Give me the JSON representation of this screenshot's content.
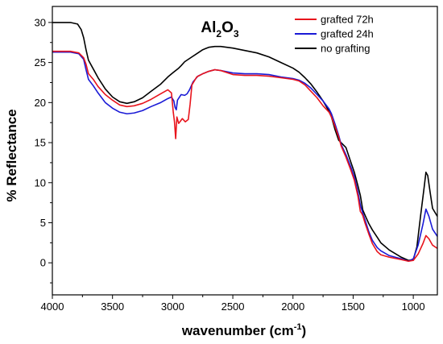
{
  "chart_data": {
    "type": "line",
    "title": {
      "base1": "Al",
      "sub1": "2",
      "base2": "O",
      "sub2": "3"
    },
    "xlabel": {
      "main": "wavenumber (cm",
      "sup": "-1",
      "end": ")"
    },
    "ylabel": "% Reflectance",
    "xlim": [
      4000,
      800
    ],
    "ylim": [
      -4,
      32
    ],
    "x_reversed": true,
    "grid": false,
    "legend_position": "top-right",
    "xticks": [
      4000,
      3500,
      3000,
      2500,
      2000,
      1500,
      1000
    ],
    "yticks": [
      0,
      5,
      10,
      15,
      20,
      25,
      30
    ],
    "series": [
      {
        "name": "grafted 72h",
        "color": "#e8141c",
        "points": [
          [
            4000,
            26.4
          ],
          [
            3850,
            26.4
          ],
          [
            3780,
            26.2
          ],
          [
            3740,
            25.6
          ],
          [
            3720,
            24.8
          ],
          [
            3700,
            23.6
          ],
          [
            3660,
            22.9
          ],
          [
            3620,
            22.0
          ],
          [
            3560,
            21.0
          ],
          [
            3500,
            20.3
          ],
          [
            3440,
            19.7
          ],
          [
            3380,
            19.5
          ],
          [
            3320,
            19.6
          ],
          [
            3250,
            19.9
          ],
          [
            3180,
            20.4
          ],
          [
            3100,
            21.1
          ],
          [
            3040,
            21.6
          ],
          [
            3010,
            21.2
          ],
          [
            2995,
            18.8
          ],
          [
            2985,
            17.6
          ],
          [
            2975,
            15.5
          ],
          [
            2965,
            18.2
          ],
          [
            2950,
            17.4
          ],
          [
            2935,
            17.7
          ],
          [
            2920,
            18.0
          ],
          [
            2895,
            17.6
          ],
          [
            2870,
            17.9
          ],
          [
            2855,
            19.8
          ],
          [
            2840,
            22.2
          ],
          [
            2800,
            23.2
          ],
          [
            2750,
            23.6
          ],
          [
            2700,
            23.9
          ],
          [
            2650,
            24.1
          ],
          [
            2600,
            24.0
          ],
          [
            2500,
            23.5
          ],
          [
            2400,
            23.4
          ],
          [
            2300,
            23.4
          ],
          [
            2200,
            23.3
          ],
          [
            2100,
            23.1
          ],
          [
            2000,
            22.9
          ],
          [
            1950,
            22.7
          ],
          [
            1900,
            22.2
          ],
          [
            1850,
            21.4
          ],
          [
            1800,
            20.6
          ],
          [
            1750,
            19.6
          ],
          [
            1700,
            18.8
          ],
          [
            1680,
            18.2
          ],
          [
            1650,
            17.0
          ],
          [
            1620,
            15.7
          ],
          [
            1600,
            14.6
          ],
          [
            1560,
            13.2
          ],
          [
            1520,
            11.6
          ],
          [
            1490,
            10.3
          ],
          [
            1460,
            8.3
          ],
          [
            1440,
            6.4
          ],
          [
            1430,
            6.2
          ],
          [
            1420,
            5.9
          ],
          [
            1400,
            4.9
          ],
          [
            1370,
            3.6
          ],
          [
            1340,
            2.4
          ],
          [
            1300,
            1.4
          ],
          [
            1270,
            1.0
          ],
          [
            1200,
            0.7
          ],
          [
            1100,
            0.4
          ],
          [
            1040,
            0.2
          ],
          [
            1000,
            0.3
          ],
          [
            960,
            1.1
          ],
          [
            920,
            2.4
          ],
          [
            895,
            3.4
          ],
          [
            870,
            3.0
          ],
          [
            840,
            2.2
          ],
          [
            800,
            1.8
          ]
        ]
      },
      {
        "name": "grafted 24h",
        "color": "#1a1ad6",
        "points": [
          [
            4000,
            26.3
          ],
          [
            3850,
            26.3
          ],
          [
            3780,
            26.1
          ],
          [
            3740,
            25.4
          ],
          [
            3720,
            24.1
          ],
          [
            3700,
            22.9
          ],
          [
            3660,
            22.1
          ],
          [
            3620,
            21.2
          ],
          [
            3560,
            20.0
          ],
          [
            3500,
            19.3
          ],
          [
            3440,
            18.8
          ],
          [
            3380,
            18.6
          ],
          [
            3320,
            18.7
          ],
          [
            3250,
            19.0
          ],
          [
            3180,
            19.5
          ],
          [
            3100,
            20.0
          ],
          [
            3040,
            20.5
          ],
          [
            3010,
            20.7
          ],
          [
            2990,
            20.2
          ],
          [
            2980,
            19.4
          ],
          [
            2970,
            19.1
          ],
          [
            2960,
            20.3
          ],
          [
            2930,
            21.0
          ],
          [
            2900,
            20.9
          ],
          [
            2880,
            21.1
          ],
          [
            2860,
            21.6
          ],
          [
            2830,
            22.6
          ],
          [
            2790,
            23.3
          ],
          [
            2750,
            23.6
          ],
          [
            2700,
            23.9
          ],
          [
            2650,
            24.1
          ],
          [
            2600,
            24.0
          ],
          [
            2500,
            23.7
          ],
          [
            2400,
            23.6
          ],
          [
            2300,
            23.6
          ],
          [
            2200,
            23.5
          ],
          [
            2100,
            23.2
          ],
          [
            2000,
            23.0
          ],
          [
            1950,
            22.8
          ],
          [
            1900,
            22.4
          ],
          [
            1850,
            21.8
          ],
          [
            1800,
            21.0
          ],
          [
            1750,
            20.2
          ],
          [
            1700,
            19.2
          ],
          [
            1680,
            18.6
          ],
          [
            1650,
            17.3
          ],
          [
            1620,
            15.9
          ],
          [
            1600,
            14.8
          ],
          [
            1560,
            13.5
          ],
          [
            1520,
            12.0
          ],
          [
            1490,
            10.7
          ],
          [
            1460,
            8.8
          ],
          [
            1440,
            7.2
          ],
          [
            1420,
            6.2
          ],
          [
            1400,
            5.3
          ],
          [
            1370,
            3.9
          ],
          [
            1340,
            2.8
          ],
          [
            1300,
            1.9
          ],
          [
            1270,
            1.5
          ],
          [
            1200,
            0.9
          ],
          [
            1100,
            0.5
          ],
          [
            1040,
            0.2
          ],
          [
            1000,
            0.5
          ],
          [
            960,
            2.2
          ],
          [
            920,
            4.8
          ],
          [
            895,
            6.7
          ],
          [
            870,
            5.8
          ],
          [
            840,
            4.2
          ],
          [
            800,
            3.3
          ]
        ]
      },
      {
        "name": "no grafting",
        "color": "#000000",
        "points": [
          [
            4000,
            30.0
          ],
          [
            3850,
            30.0
          ],
          [
            3790,
            29.8
          ],
          [
            3760,
            29.1
          ],
          [
            3740,
            28.1
          ],
          [
            3720,
            26.6
          ],
          [
            3700,
            25.3
          ],
          [
            3660,
            24.2
          ],
          [
            3620,
            23.1
          ],
          [
            3560,
            21.7
          ],
          [
            3500,
            20.7
          ],
          [
            3440,
            20.1
          ],
          [
            3380,
            19.9
          ],
          [
            3320,
            20.1
          ],
          [
            3250,
            20.6
          ],
          [
            3180,
            21.4
          ],
          [
            3100,
            22.3
          ],
          [
            3040,
            23.2
          ],
          [
            3000,
            23.7
          ],
          [
            2950,
            24.3
          ],
          [
            2930,
            24.6
          ],
          [
            2900,
            25.1
          ],
          [
            2850,
            25.6
          ],
          [
            2800,
            26.1
          ],
          [
            2750,
            26.6
          ],
          [
            2700,
            26.9
          ],
          [
            2650,
            27.0
          ],
          [
            2600,
            27.0
          ],
          [
            2500,
            26.8
          ],
          [
            2400,
            26.5
          ],
          [
            2300,
            26.2
          ],
          [
            2200,
            25.7
          ],
          [
            2100,
            25.0
          ],
          [
            2000,
            24.3
          ],
          [
            1950,
            23.8
          ],
          [
            1900,
            23.1
          ],
          [
            1850,
            22.3
          ],
          [
            1800,
            21.3
          ],
          [
            1750,
            20.2
          ],
          [
            1700,
            18.9
          ],
          [
            1680,
            18.2
          ],
          [
            1650,
            16.6
          ],
          [
            1620,
            15.3
          ],
          [
            1600,
            15.0
          ],
          [
            1560,
            14.4
          ],
          [
            1520,
            12.6
          ],
          [
            1490,
            11.3
          ],
          [
            1460,
            9.6
          ],
          [
            1440,
            8.4
          ],
          [
            1420,
            6.6
          ],
          [
            1400,
            5.9
          ],
          [
            1370,
            4.9
          ],
          [
            1340,
            4.1
          ],
          [
            1300,
            3.2
          ],
          [
            1270,
            2.5
          ],
          [
            1200,
            1.6
          ],
          [
            1100,
            0.7
          ],
          [
            1040,
            0.3
          ],
          [
            1000,
            0.4
          ],
          [
            970,
            2.0
          ],
          [
            940,
            5.8
          ],
          [
            910,
            9.4
          ],
          [
            895,
            11.3
          ],
          [
            880,
            10.9
          ],
          [
            860,
            8.8
          ],
          [
            840,
            6.8
          ],
          [
            800,
            5.8
          ]
        ]
      }
    ]
  }
}
